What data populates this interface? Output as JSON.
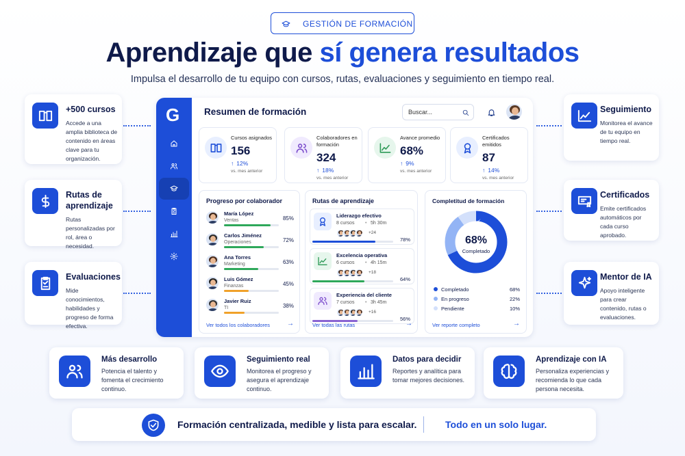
{
  "header": {
    "badge": "GESTIÓN DE FORMACIÓN",
    "title_start": "Aprendizaje que ",
    "title_highlight": "sí genera resultados",
    "subtitle": "Impulsa el desarrollo de tu equipo con cursos, rutas, evaluaciones y seguimiento en tiempo real."
  },
  "left_features": [
    {
      "title": "+500 cursos",
      "text": "Accede a una amplia biblioteca de contenido en áreas clave para tu organización."
    },
    {
      "title": "Rutas de aprendizaje",
      "text": "Rutas personalizadas por rol, área o necesidad."
    },
    {
      "title": "Evaluaciones",
      "text": "Mide conocimientos, habilidades y progreso de forma efectiva."
    }
  ],
  "right_features": [
    {
      "title": "Seguimiento",
      "text": "Monitorea el avance de tu equipo en tiempo real."
    },
    {
      "title": "Certificados",
      "text": "Emite certificados automáticos por cada curso aprobado."
    },
    {
      "title": "Mentor de IA",
      "text": "Apoyo inteligente para crear contenido, rutas o evaluaciones."
    }
  ],
  "dashboard": {
    "logo": "G",
    "title": "Resumen de formación",
    "search": "Buscar...",
    "stats": [
      {
        "label": "Cursos asignados",
        "value": "156",
        "change": "12%",
        "note": "vs. mes anterior"
      },
      {
        "label": "Colaboradores en formación",
        "value": "324",
        "change": "18%",
        "note": "vs. mes anterior"
      },
      {
        "label": "Avance promedio",
        "value": "68%",
        "change": "9%",
        "note": "vs. mes anterior"
      },
      {
        "label": "Certificados emitidos",
        "value": "87",
        "change": "14%",
        "note": "vs. mes anterior"
      }
    ],
    "progress": {
      "title": "Progreso por colaborador",
      "people": [
        {
          "name": "María López",
          "role": "Ventas",
          "percent": {
            "value": 85,
            "label": "85%"
          }
        },
        {
          "name": "Carlos Jiménez",
          "role": "Operaciones",
          "percent": {
            "value": 72,
            "label": "72%"
          }
        },
        {
          "name": "Ana Torres",
          "role": "Marketing",
          "percent": {
            "value": 63,
            "label": "63%"
          }
        },
        {
          "name": "Luis Gómez",
          "role": "Finanzas",
          "percent": {
            "value": 45,
            "label": "45%"
          }
        },
        {
          "name": "Javier Ruiz",
          "role": "TI",
          "percent": {
            "value": 38,
            "label": "38%"
          }
        }
      ],
      "link": "Ver todos los colaboradores"
    },
    "paths": {
      "title": "Rutas de aprendizaje",
      "items": [
        {
          "name": "Liderazgo efectivo",
          "courses": "8 cursos",
          "duration": "5h 30m",
          "extra": "+24",
          "percent": {
            "value": 78,
            "label": "78%"
          }
        },
        {
          "name": "Excelencia operativa",
          "courses": "6 cursos",
          "duration": "4h 15m",
          "extra": "+18",
          "percent": {
            "value": 64,
            "label": "64%"
          }
        },
        {
          "name": "Experiencia del cliente",
          "courses": "7 cursos",
          "duration": "3h 45m",
          "extra": "+16",
          "percent": {
            "value": 56,
            "label": "56%"
          }
        }
      ],
      "link": "Ver todas las rutas"
    },
    "completion": {
      "title": "Completitud de formación",
      "center_value": "68%",
      "center_label": "Completado",
      "segments": [
        {
          "name": "Completado",
          "value": {
            "value": 68,
            "label": "68%"
          },
          "color": "#1d4ed8"
        },
        {
          "name": "En progreso",
          "value": {
            "value": 22,
            "label": "22%"
          },
          "color": "#93b4f5"
        },
        {
          "name": "Pendiente",
          "value": {
            "value": 10,
            "label": "10%"
          },
          "color": "#d3e0fb"
        }
      ],
      "link": "Ver reporte completo"
    }
  },
  "bottom_features": [
    {
      "title": "Más desarrollo",
      "text": "Potencia el talento y fomenta el crecimiento continuo."
    },
    {
      "title": "Seguimiento real",
      "text": "Monitorea el progreso y asegura el aprendizaje continuo."
    },
    {
      "title": "Datos para decidir",
      "text": "Reportes y analítica para tomar mejores decisiones."
    },
    {
      "title": "Aprendizaje con IA",
      "text": "Personaliza experiencias y recomienda lo que cada persona necesita."
    }
  ],
  "footer": {
    "text": "Formación centralizada, medible y lista para escalar.",
    "tagline": "Todo en un solo lugar."
  }
}
